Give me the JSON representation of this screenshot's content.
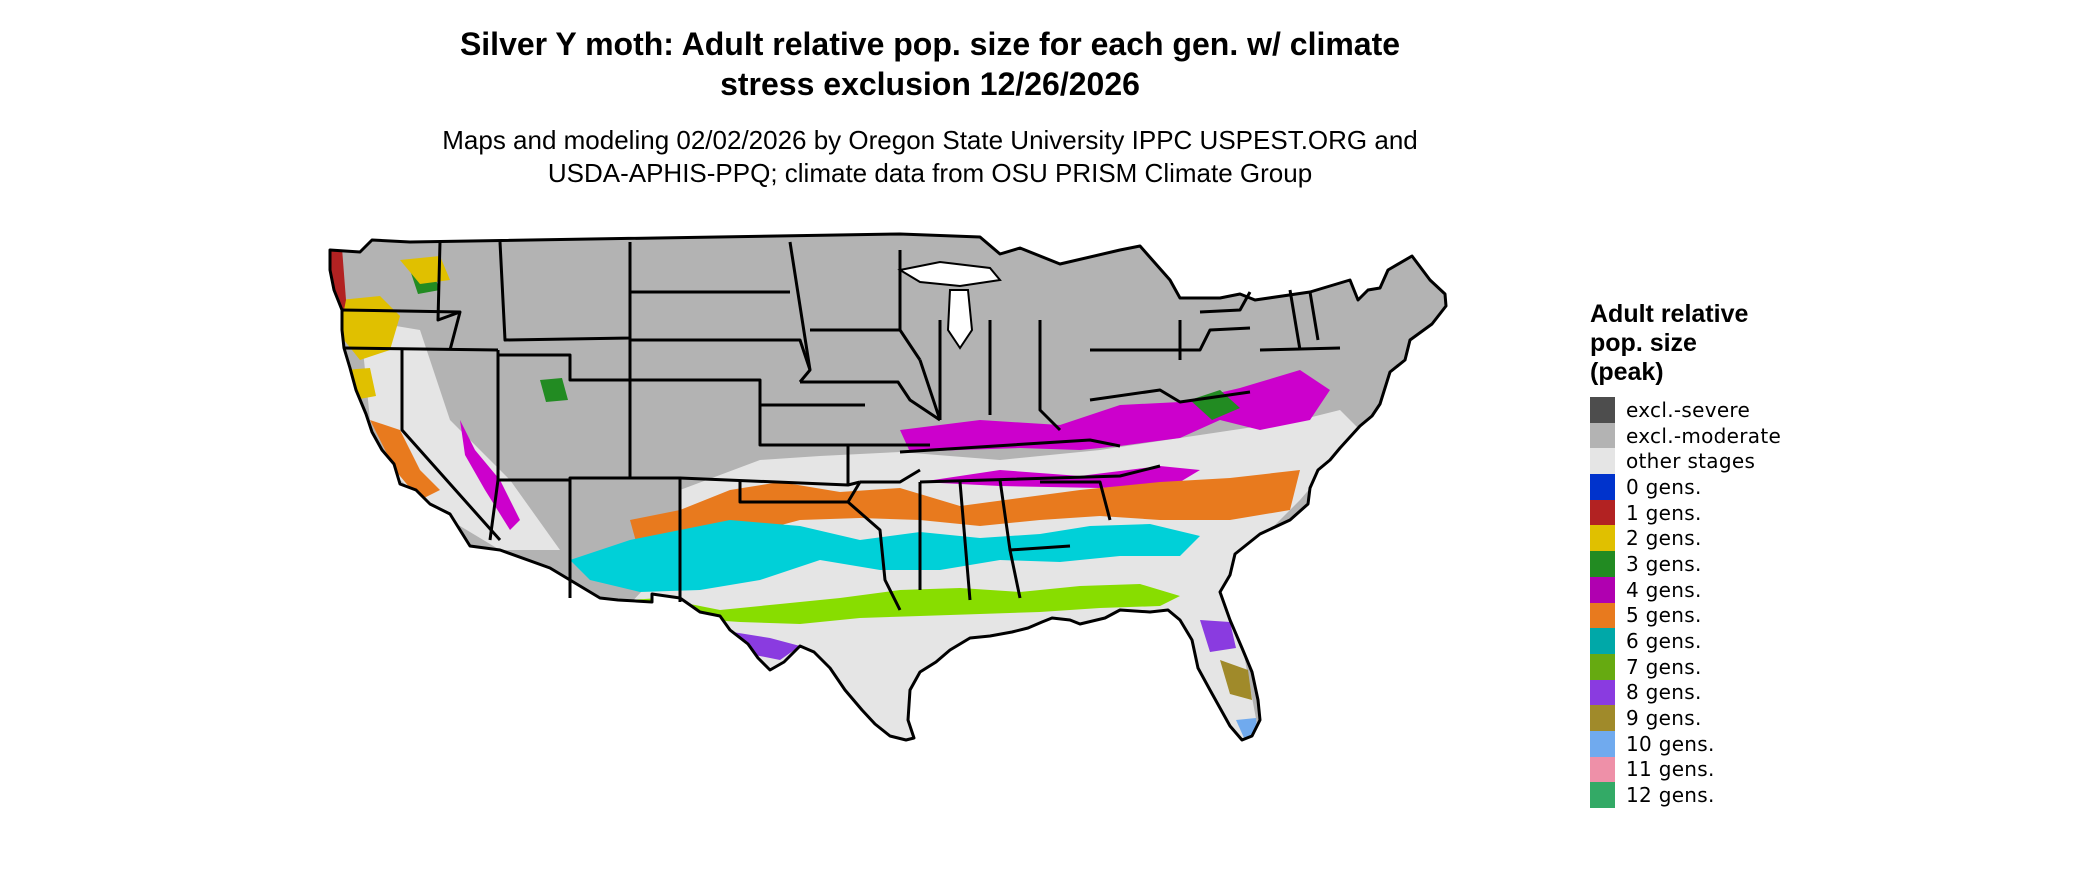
{
  "title_line1": "Silver Y moth: Adult relative pop. size for each gen. w/ climate",
  "title_line2": "stress exclusion 12/26/2026",
  "subtitle_line1": "Maps and modeling 02/02/2026 by Oregon State University IPPC USPEST.ORG and",
  "subtitle_line2": "USDA-APHIS-PPQ; climate data from OSU PRISM Climate Group",
  "legend": {
    "title_line1": "Adult relative",
    "title_line2": "pop. size",
    "title_line3": "(peak)",
    "items": [
      {
        "label": "excl.-severe",
        "color": "#4d4d4d"
      },
      {
        "label": "excl.-moderate",
        "color": "#b3b3b3"
      },
      {
        "label": "other stages",
        "color": "#e5e5e5"
      },
      {
        "label": "0 gens.",
        "color": "#0033cc"
      },
      {
        "label": "1 gens.",
        "color": "#b22222"
      },
      {
        "label": "2 gens.",
        "color": "#e0c000"
      },
      {
        "label": "3 gens.",
        "color": "#228b22"
      },
      {
        "label": "4 gens.",
        "color": "#b000b0"
      },
      {
        "label": "5 gens.",
        "color": "#e87a1e"
      },
      {
        "label": "6 gens.",
        "color": "#00a8a8"
      },
      {
        "label": "7 gens.",
        "color": "#66aa11"
      },
      {
        "label": "8 gens.",
        "color": "#8a3be0"
      },
      {
        "label": "9 gens.",
        "color": "#a08a2a"
      },
      {
        "label": "10 gens.",
        "color": "#70aaee"
      },
      {
        "label": "11 gens.",
        "color": "#ee90a8"
      },
      {
        "label": "12 gens.",
        "color": "#33aa66"
      }
    ]
  },
  "map_colors": {
    "excluded": "#b3b3b3",
    "other": "#e5e5e5",
    "gen1": "#b22222",
    "gen2": "#e0c000",
    "gen3": "#228b22",
    "gen4": "#cc00cc",
    "gen5": "#e87a1e",
    "gen6": "#00d0d8",
    "gen7": "#88dd00",
    "gen8": "#8a3be0",
    "gen9": "#a08a2a",
    "gen10": "#70aaee",
    "gen11": "#ee90a8",
    "borders": "#000000",
    "water": "#ffffff"
  }
}
